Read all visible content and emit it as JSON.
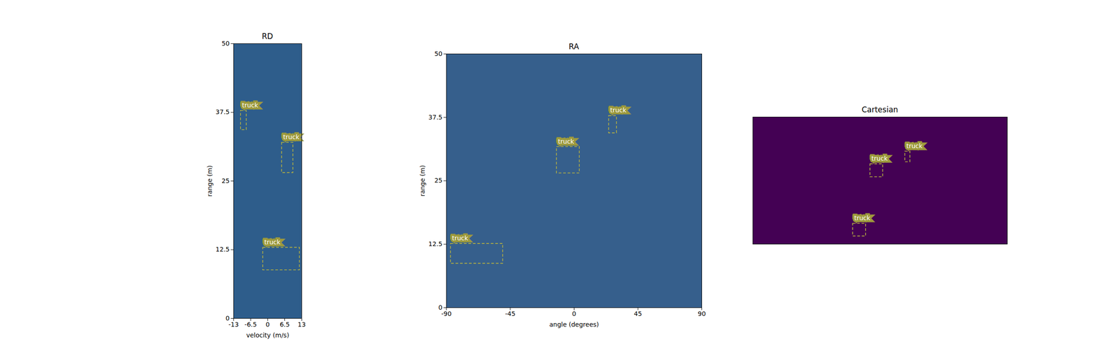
{
  "chart_data": [
    {
      "type": "heatmap",
      "title": "RD",
      "x_label": "velocity (m/s)",
      "y_label": "range (m)",
      "xlim": [
        -13,
        13
      ],
      "ylim": [
        0,
        50
      ],
      "xticks": [
        -13,
        -6.5,
        0,
        6.5,
        13
      ],
      "yticks": [
        0,
        12.5,
        25,
        37.5,
        50
      ],
      "color": "#2e5d8b",
      "boxes": [
        {
          "label": "truck",
          "x": [
            -10.3,
            -8.1
          ],
          "y": [
            34.3,
            37.8
          ]
        },
        {
          "label": "truck",
          "x": [
            5.4,
            9.7
          ],
          "y": [
            26.5,
            32.0
          ]
        },
        {
          "label": "truck",
          "x": [
            -1.8,
            12.2
          ],
          "y": [
            8.8,
            12.9
          ]
        }
      ]
    },
    {
      "type": "heatmap",
      "title": "RA",
      "x_label": "angle (degrees)",
      "y_label": "range (m)",
      "xlim": [
        -90,
        90
      ],
      "ylim": [
        0,
        50
      ],
      "xticks": [
        -90,
        -45,
        0,
        45,
        90
      ],
      "yticks": [
        0,
        12.5,
        25,
        37.5,
        50
      ],
      "color": "#365f8c",
      "boxes": [
        {
          "label": "truck",
          "x": [
            24.5,
            30.0
          ],
          "y": [
            34.4,
            37.8
          ]
        },
        {
          "label": "truck",
          "x": [
            -12.3,
            3.8
          ],
          "y": [
            26.5,
            31.7
          ]
        },
        {
          "label": "truck",
          "x": [
            -87.0,
            -50.2
          ],
          "y": [
            8.7,
            12.6
          ]
        }
      ]
    },
    {
      "type": "heatmap",
      "title": "Cartesian",
      "tick_labels": false,
      "xlim": [
        -50,
        50
      ],
      "ylim": [
        0,
        50
      ],
      "color": "#440154",
      "boxes": [
        {
          "label": "truck",
          "x": [
            9.8,
            11.8
          ],
          "y": [
            32.3,
            36.5
          ]
        },
        {
          "label": "truck",
          "x": [
            -3.9,
            1.1
          ],
          "y": [
            26.4,
            31.5
          ]
        },
        {
          "label": "truck",
          "x": [
            -10.7,
            -5.6
          ],
          "y": [
            3.1,
            8.1
          ]
        }
      ]
    }
  ]
}
